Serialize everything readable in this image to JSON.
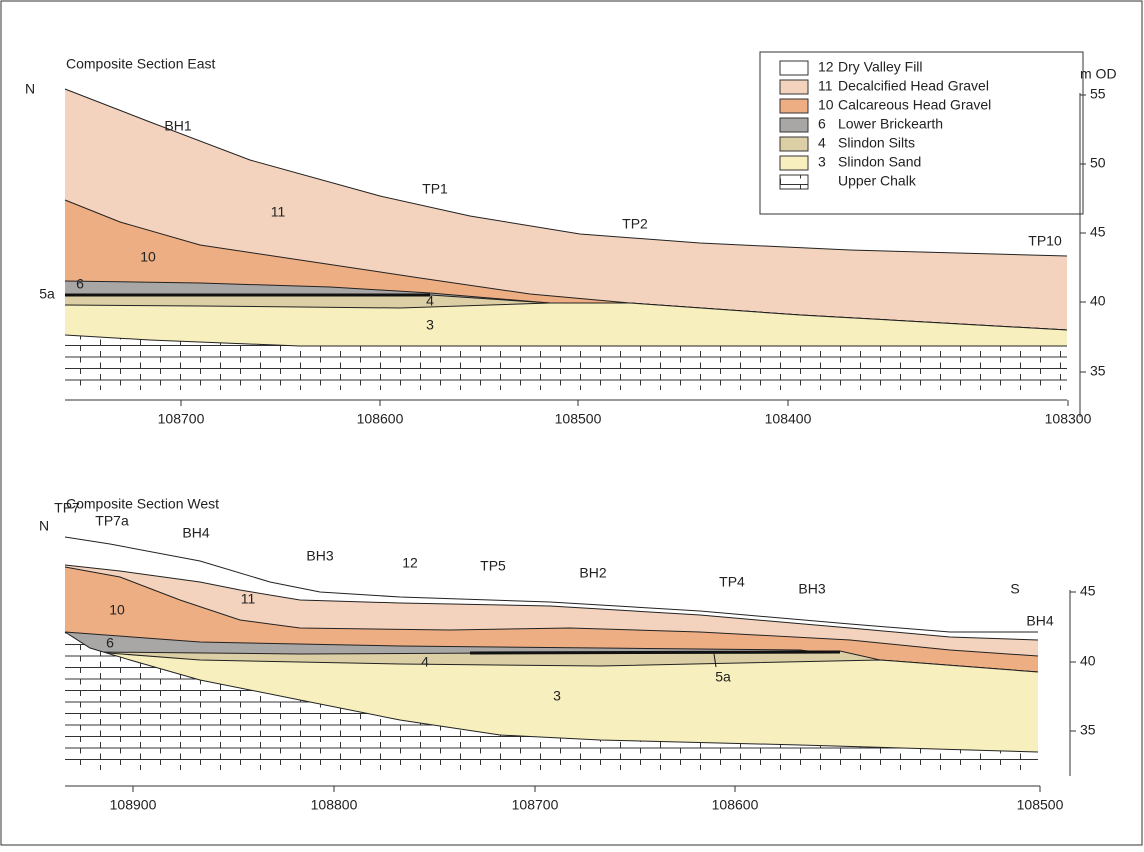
{
  "legend": [
    {
      "number": "12",
      "name": "Dry Valley Fill"
    },
    {
      "number": "11",
      "name": "Decalcified Head Gravel"
    },
    {
      "number": "10",
      "name": "Calcareous Head Gravel"
    },
    {
      "number": "6",
      "name": "Lower Brickearth"
    },
    {
      "number": "4",
      "name": "Slindon Silts"
    },
    {
      "number": "3",
      "name": "Slindon Sand"
    },
    {
      "name": "Upper Chalk"
    }
  ],
  "sections": [
    {
      "title": "Composite Section East",
      "y_unit": "m OD",
      "labels": [
        "N",
        "BH1",
        "TP1",
        "TP2",
        "TP10",
        "11",
        "10",
        "6",
        "5a",
        "4",
        "3"
      ],
      "xticks": [
        108700,
        108600,
        108500,
        108400,
        108300
      ],
      "yticks": [
        55,
        50,
        45,
        40,
        35
      ]
    },
    {
      "title": "Composite Section West",
      "labels": [
        "N",
        "TP7",
        "TP7a",
        "BH4",
        "BH3",
        "12",
        "TP5",
        "BH2",
        "TP4",
        "BH3",
        "S",
        "BH4",
        "10",
        "11",
        "6",
        "4",
        "5a",
        "3"
      ],
      "xticks": [
        108900,
        108800,
        108700,
        108600,
        108500
      ],
      "yticks": [
        45,
        40,
        35
      ]
    }
  ]
}
